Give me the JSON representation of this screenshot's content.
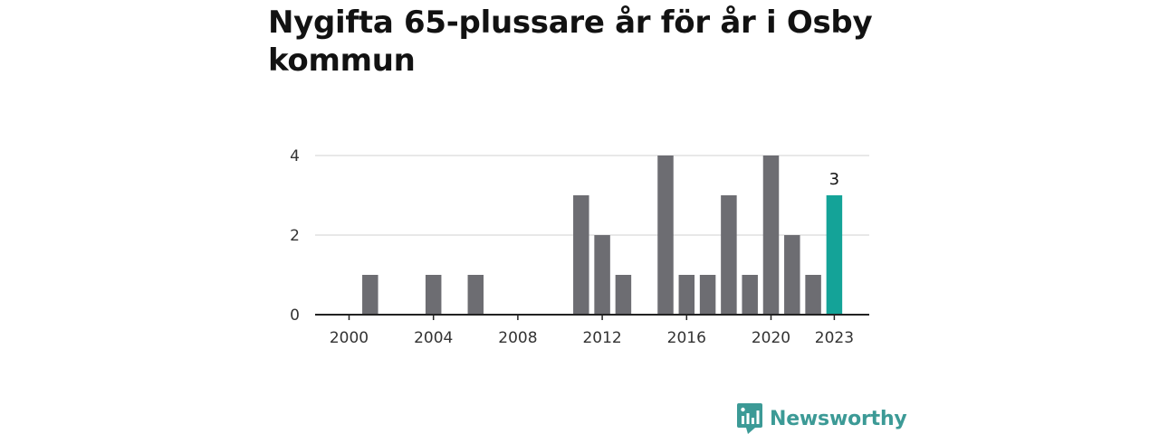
{
  "title": "Nygifta 65-plussare år för år i Osby kommun",
  "brand": {
    "name": "Newsworthy",
    "icon": "newsworthy-logo-icon",
    "color": "#3c9a96"
  },
  "colors": {
    "bar": "#6d6d72",
    "highlight": "#14a398",
    "grid": "#d9d9d9",
    "axis": "#222222"
  },
  "chart_data": {
    "type": "bar",
    "title": "Nygifta 65-plussare år för år i Osby kommun",
    "xlabel": "",
    "ylabel": "",
    "x": [
      2000,
      2001,
      2002,
      2003,
      2004,
      2005,
      2006,
      2007,
      2008,
      2009,
      2010,
      2011,
      2012,
      2013,
      2014,
      2015,
      2016,
      2017,
      2018,
      2019,
      2020,
      2021,
      2022,
      2023
    ],
    "values": [
      0,
      1,
      0,
      0,
      1,
      0,
      1,
      0,
      0,
      0,
      0,
      3,
      2,
      1,
      0,
      4,
      1,
      1,
      3,
      1,
      4,
      2,
      1,
      3
    ],
    "ylim": [
      0,
      4
    ],
    "yticks": [
      0,
      2,
      4
    ],
    "xticks": [
      2000,
      2004,
      2008,
      2012,
      2016,
      2020,
      2023
    ],
    "highlight": {
      "x": 2023,
      "label": "3"
    },
    "grid": true,
    "legend": "none"
  }
}
